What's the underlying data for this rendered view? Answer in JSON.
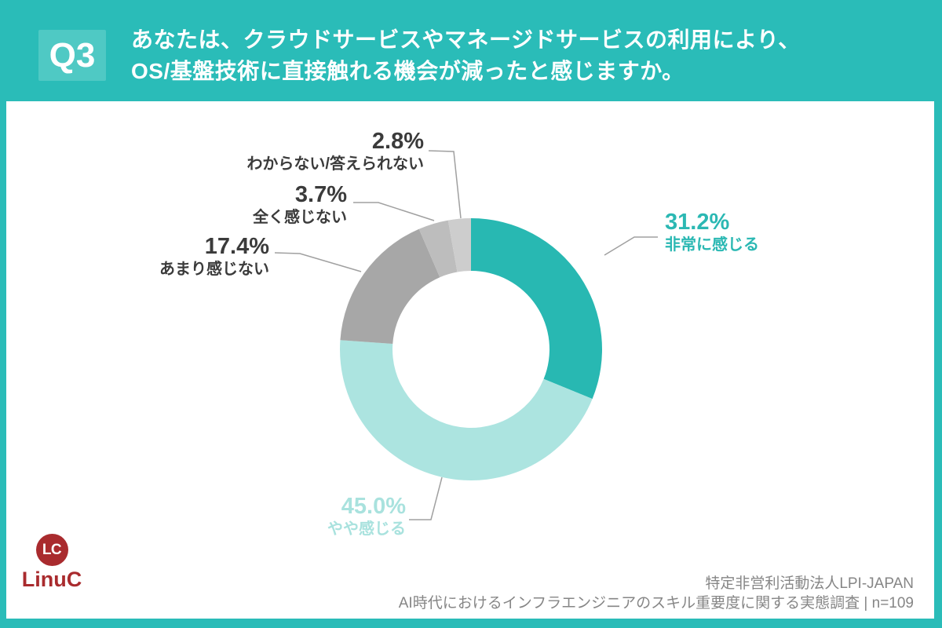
{
  "header": {
    "badge": "Q3",
    "title_line1": "あなたは、クラウドサービスやマネージドサービスの利用により、",
    "title_line2": "OS/基盤技術に直接触れる機会が減ったと感じますか。"
  },
  "chart_data": {
    "type": "pie",
    "donut": true,
    "start_angle_deg": 0,
    "direction": "clockwise",
    "title": "あなたは、クラウドサービスやマネージドサービスの利用により、OS/基盤技術に直接触れる機会が減ったと感じますか。",
    "unit": "%",
    "n": 109,
    "segments": [
      {
        "label": "非常に感じる",
        "value": 31.2,
        "pct_label": "31.2%",
        "color": "#28b8b2",
        "text_color": "#2bb8b3"
      },
      {
        "label": "やや感じる",
        "value": 45.0,
        "pct_label": "45.0%",
        "color": "#ace4e0",
        "text_color": "#a9e2de"
      },
      {
        "label": "あまり感じない",
        "value": 17.4,
        "pct_label": "17.4%",
        "color": "#a7a7a7",
        "text_color": "#3b3b3b"
      },
      {
        "label": "全く感じない",
        "value": 3.7,
        "pct_label": "3.7%",
        "color": "#bdbdbd",
        "text_color": "#3b3b3b"
      },
      {
        "label": "わからない/答えられない",
        "value": 2.8,
        "pct_label": "2.8%",
        "color": "#cdcdcd",
        "text_color": "#3b3b3b"
      }
    ]
  },
  "footer": {
    "org": "特定非営利活動法人LPI-JAPAN",
    "survey": "AI時代におけるインフラエンジニアのスキル重要度に関する実態調査 | n=109"
  },
  "logo": {
    "mark": "LC",
    "name": "LinuC",
    "color": "#a92b2e",
    "mark_text_color": "#ffffff"
  },
  "colors": {
    "header_bg": "#2abcb8",
    "badge_bg": "#4fc9c4",
    "panel_bg": "#ffffff",
    "leader_line": "#a0a0a0",
    "label_dark": "#3b3b3b",
    "footer_text": "#868686"
  }
}
